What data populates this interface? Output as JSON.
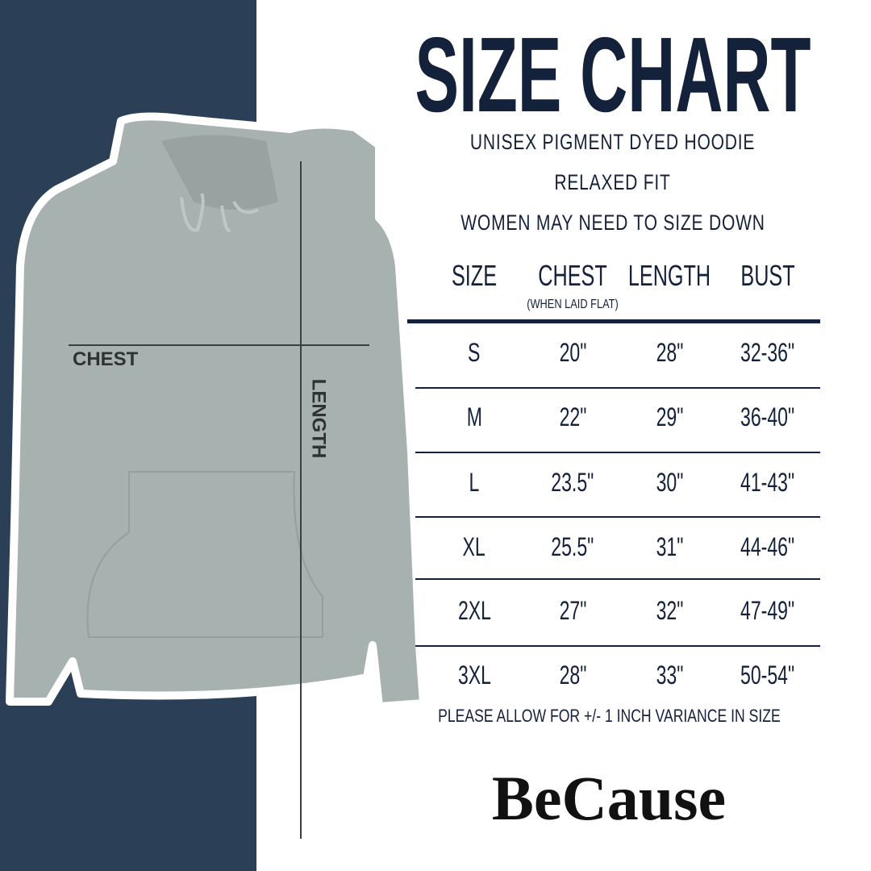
{
  "title": "SIZE CHART",
  "subtitles": [
    "UNISEX PIGMENT DYED HOODIE",
    "RELAXED FIT",
    "WOMEN MAY NEED TO SIZE DOWN"
  ],
  "table": {
    "headers": [
      "SIZE",
      "CHEST",
      "LENGTH",
      "BUST"
    ],
    "chest_note": "(WHEN LAID FLAT)",
    "rows": [
      [
        "S",
        "20\"",
        "28\"",
        "32-36\""
      ],
      [
        "M",
        "22\"",
        "29\"",
        "36-40\""
      ],
      [
        "L",
        "23.5\"",
        "30\"",
        "41-43\""
      ],
      [
        "XL",
        "25.5\"",
        "31\"",
        "44-46\""
      ],
      [
        "2XL",
        "27\"",
        "32\"",
        "47-49\""
      ],
      [
        "3XL",
        "28\"",
        "33\"",
        "50-54\""
      ]
    ]
  },
  "footnote": "PLEASE ALLOW FOR +/- 1 INCH VARIANCE IN SIZE",
  "diagram": {
    "chest_label": "CHEST",
    "length_label": "LENGTH"
  },
  "brand": "BeCause",
  "colors": {
    "panel": "#2b4057",
    "text": "#14213a",
    "hoodie": "#a7b1af"
  }
}
